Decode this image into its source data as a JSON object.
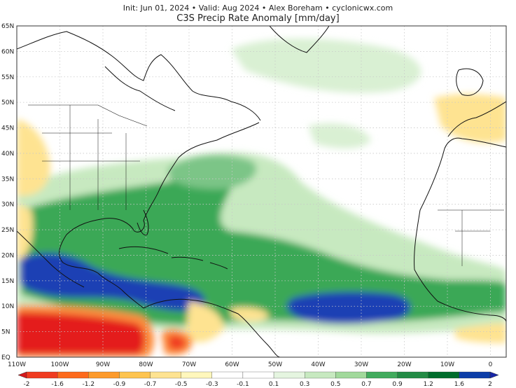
{
  "header": {
    "subtitle": "Init: Jun 01, 2024 • Valid: Aug 2024 • Alex Boreham • cyclonicwx.com",
    "title": "C3S Precip Rate Anomaly [mm/day]"
  },
  "axes": {
    "lat_labels": [
      "65N",
      "60N",
      "55N",
      "50N",
      "45N",
      "40N",
      "35N",
      "30N",
      "25N",
      "20N",
      "15N",
      "10N",
      "5N",
      "EQ"
    ],
    "lon_labels": [
      "110W",
      "100W",
      "90W",
      "80W",
      "70W",
      "60W",
      "50W",
      "40W",
      "30W",
      "20W",
      "10W",
      "0"
    ]
  },
  "colorbar": {
    "labels": [
      "-2",
      "-1.6",
      "-1.2",
      "-0.9",
      "-0.7",
      "-0.5",
      "-0.3",
      "-0.1",
      "0.1",
      "0.3",
      "0.5",
      "0.7",
      "0.9",
      "1.2",
      "1.6",
      "2"
    ],
    "colors": [
      "#d7191c",
      "#f03b20",
      "#fd6a1c",
      "#fd9a2a",
      "#fec44f",
      "#fee391",
      "#fff7bc",
      "#ffffff",
      "#ffffff",
      "#e5f5e0",
      "#c7e9c0",
      "#a1d99b",
      "#41ab5d",
      "#238b45",
      "#006d2c",
      "#0c3ea8",
      "#1726a8"
    ]
  },
  "colors": {
    "land_line": "#111111",
    "grid": "#c8c8c8",
    "dry_red": "#e41a1c",
    "dry_orange": "#fd8d3c",
    "dry_yellow": "#fee391",
    "wet_light": "#c7e9c0",
    "wet_mid": "#41ab5d",
    "wet_dark": "#1d8a3a",
    "wet_blue": "#1c3fb4"
  }
}
